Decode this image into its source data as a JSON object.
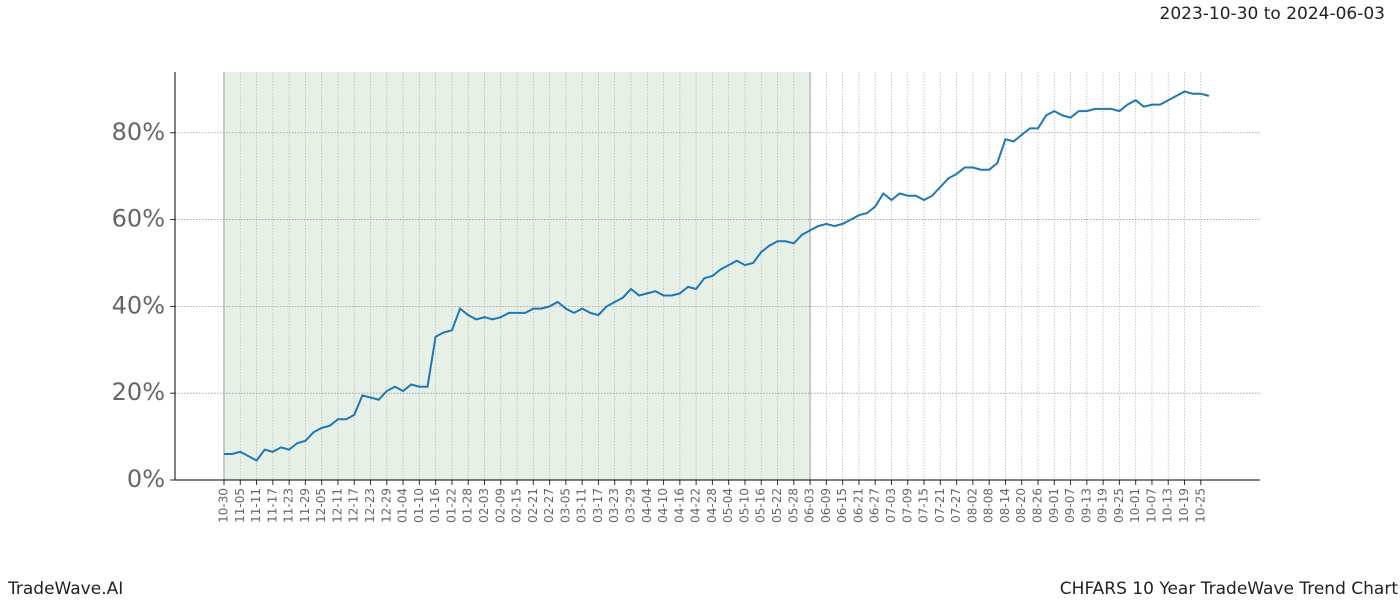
{
  "chart_data": {
    "type": "line",
    "title": "CHFARS 10 Year TradeWave Trend Chart",
    "date_range": "2023-10-30 to 2024-06-03",
    "brand": "TradeWave.AI",
    "categories": [
      "10-30",
      null,
      "11-05",
      null,
      "11-11",
      null,
      "11-17",
      null,
      "11-23",
      null,
      "11-29",
      null,
      "12-05",
      null,
      "12-11",
      null,
      "12-17",
      null,
      "12-23",
      null,
      "12-29",
      null,
      "01-04",
      null,
      "01-10",
      null,
      "01-16",
      null,
      "01-22",
      null,
      "01-28",
      null,
      "02-03",
      null,
      "02-09",
      null,
      "02-15",
      null,
      "02-21",
      null,
      "02-27",
      null,
      "03-05",
      null,
      "03-11",
      null,
      "03-17",
      null,
      "03-23",
      null,
      "03-29",
      null,
      "04-04",
      null,
      "04-10",
      null,
      "04-16",
      null,
      "04-22",
      null,
      "04-28",
      null,
      "05-04",
      null,
      "05-10",
      null,
      "05-16",
      null,
      "05-22",
      null,
      "05-28",
      null,
      "06-03",
      null,
      "06-09",
      null,
      "06-15",
      null,
      "06-21",
      null,
      "06-27",
      null,
      "07-03",
      null,
      "07-09",
      null,
      "07-15",
      null,
      "07-21",
      null,
      "07-27",
      null,
      "08-02",
      null,
      "08-08",
      null,
      "08-14",
      null,
      "08-20",
      null,
      "08-26",
      null,
      "09-01",
      null,
      "09-07",
      null,
      "09-13",
      null,
      "09-19",
      null,
      "09-25",
      null,
      "10-01",
      null,
      "10-07",
      null,
      "10-13",
      null,
      "10-19",
      null,
      "10-25",
      null
    ],
    "series": [
      {
        "color": "#1f77b4",
        "values": [
          6,
          6,
          6.5,
          5.5,
          4.5,
          7,
          6.5,
          7.5,
          7,
          8.5,
          9,
          11,
          12,
          12.5,
          14,
          14,
          15,
          19.5,
          19,
          18.5,
          20.5,
          21.5,
          20.5,
          22,
          21.5,
          21.5,
          33,
          34,
          34.5,
          39.5,
          38,
          37,
          37.5,
          37,
          37.5,
          38.5,
          38.5,
          38.5,
          39.5,
          39.5,
          40,
          41,
          39.5,
          38.5,
          39.5,
          38.5,
          38,
          40,
          41,
          42,
          44,
          42.5,
          43,
          43.5,
          42.5,
          42.5,
          43,
          44.5,
          44,
          46.5,
          47,
          48.5,
          49.5,
          50.5,
          49.5,
          50,
          52.5,
          54,
          55,
          55,
          54.5,
          56.5,
          57.5,
          58.5,
          59,
          58.5,
          59,
          60,
          61,
          61.5,
          63,
          66,
          64.5,
          66,
          65.5,
          65.5,
          64.5,
          65.5,
          67.5,
          69.5,
          70.5,
          72,
          72,
          71.5,
          71.5,
          73,
          78.5,
          78,
          79.5,
          81,
          81,
          84,
          85,
          84,
          83.5,
          85,
          85,
          85.5,
          85.5,
          85.5,
          85,
          86.5,
          87.5,
          86,
          86.5,
          86.5,
          87.5,
          88.5,
          89.5,
          89,
          89,
          88.5
        ]
      }
    ],
    "shade": {
      "from": "10-30",
      "to": "06-03",
      "color": "#e6f0e6"
    },
    "ylim": [
      0,
      94
    ],
    "yticks": [
      {
        "value": 0,
        "label": "0%"
      },
      {
        "value": 20,
        "label": "20%"
      },
      {
        "value": 40,
        "label": "40%"
      },
      {
        "value": 60,
        "label": "60%"
      },
      {
        "value": 80,
        "label": "80%"
      }
    ],
    "grid": true
  }
}
